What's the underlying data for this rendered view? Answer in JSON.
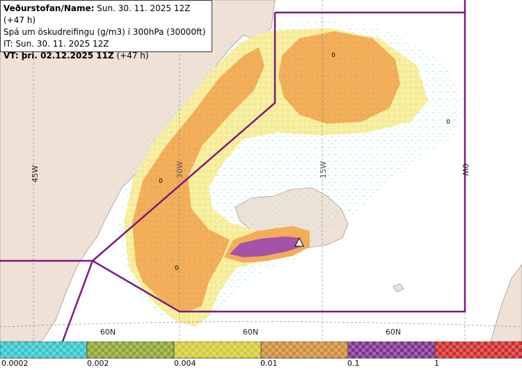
{
  "header": {
    "issuer_label": "Veðurstofan/Name:",
    "issuer_value": " Sun. 30. 11. 2025 12Z (+47 h)",
    "product": "Spá um öskudreifingu (g/m3) í 300hPa (30000ft)",
    "it_line": "IT: Sun. 30. 11. 2025 12Z",
    "vt_label": "VT: þri. 02.12.2025 11Z",
    "vt_value": " (+47 h)"
  },
  "map": {
    "meridians": [
      "45W",
      "30W",
      "15W",
      "0W"
    ],
    "parallels": [
      "60N",
      "60N",
      "60N"
    ],
    "zero_markers": [
      "0",
      "0",
      "0",
      "0"
    ],
    "colors": {
      "sea": "#ffffff",
      "land": "#efe1d5",
      "boundary": "#7a1a7a",
      "ash_outer_cyan": "#bff3f3",
      "ash_yellow": "#f4ea8a",
      "ash_orange": "#f2ad58",
      "ash_purple": "#a552a8"
    }
  },
  "legend": {
    "ticks": [
      "0.0002",
      "0.002",
      "0.004",
      "0.01",
      "0.1",
      "1"
    ],
    "colors": [
      "#37c6c9",
      "#8da52f",
      "#d4cb3a",
      "#cf8c3a",
      "#7d3391",
      "#d12d2d"
    ]
  }
}
